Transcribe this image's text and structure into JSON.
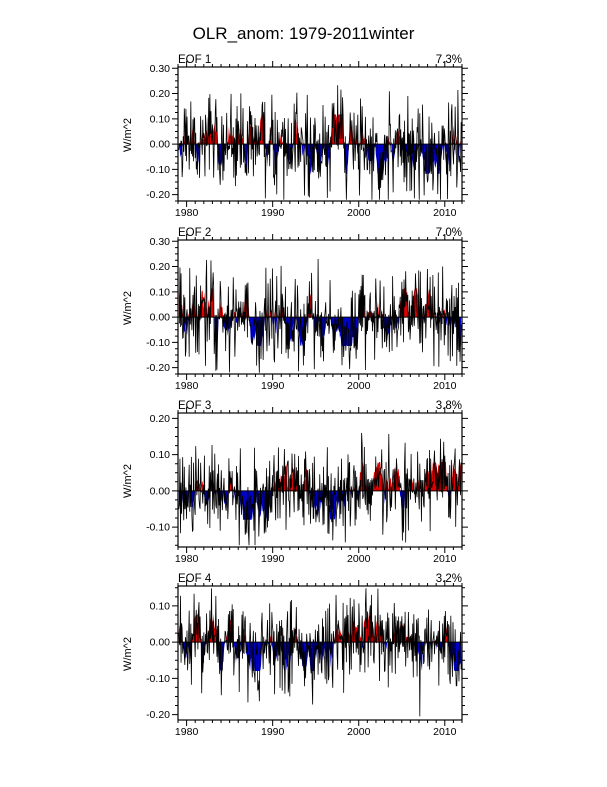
{
  "title": "OLR_anom: 1979-2011winter",
  "chart_data": {
    "type": "line",
    "title": "OLR_anom: 1979-2011winter",
    "subtitle": "",
    "ylabel": "W/m^2",
    "xlabel": "",
    "grid": false,
    "legend_position": "none",
    "x_range": [
      1979,
      2012
    ],
    "x_data_range": [
      1979.1,
      2011.9
    ],
    "x_major_ticks": [
      1980,
      1990,
      2000,
      2010
    ],
    "x_minor_step_years": 1,
    "y_minor_step": 0.025,
    "colors": {
      "positive_fill": "#e00000",
      "negative_fill": "#0000c8",
      "line": "#000000",
      "axis": "#000000",
      "background": "#ffffff"
    },
    "panels": [
      {
        "label": "EOF 1",
        "variance": "7.3%",
        "ylim": [
          -0.225,
          0.305
        ],
        "yticks": [
          "-0.20",
          "-0.10",
          "0.00",
          "0.10",
          "0.20",
          "0.30"
        ],
        "approx_max": 0.23,
        "approx_min": -0.2,
        "synth": {
          "seed": 11,
          "noise_amp": 0.115,
          "smooth_amp": 0.062,
          "peak": 0.225
        }
      },
      {
        "label": "EOF 2",
        "variance": "7.0%",
        "ylim": [
          -0.225,
          0.305
        ],
        "yticks": [
          "-0.20",
          "-0.10",
          "0.00",
          "0.10",
          "0.20",
          "0.30"
        ],
        "approx_max": 0.21,
        "approx_min": -0.19,
        "synth": {
          "seed": 23,
          "noise_amp": 0.105,
          "smooth_amp": 0.06,
          "peak": 0.205
        }
      },
      {
        "label": "EOF 3",
        "variance": "3.8%",
        "ylim": [
          -0.155,
          0.215
        ],
        "yticks": [
          "-0.10",
          "0.00",
          "0.10",
          "0.20"
        ],
        "approx_max": 0.13,
        "approx_min": -0.13,
        "synth": {
          "seed": 37,
          "noise_amp": 0.072,
          "smooth_amp": 0.042,
          "peak": 0.128
        }
      },
      {
        "label": "EOF 4",
        "variance": "3.2%",
        "ylim": [
          -0.215,
          0.155
        ],
        "yticks": [
          "-0.20",
          "-0.10",
          "0.00",
          "0.10"
        ],
        "approx_max": 0.13,
        "approx_min": -0.21,
        "synth": {
          "seed": 53,
          "noise_amp": 0.072,
          "smooth_amp": 0.042,
          "peak": 0.125,
          "spike": {
            "year": 2007.1,
            "value": -0.205
          }
        }
      }
    ]
  }
}
